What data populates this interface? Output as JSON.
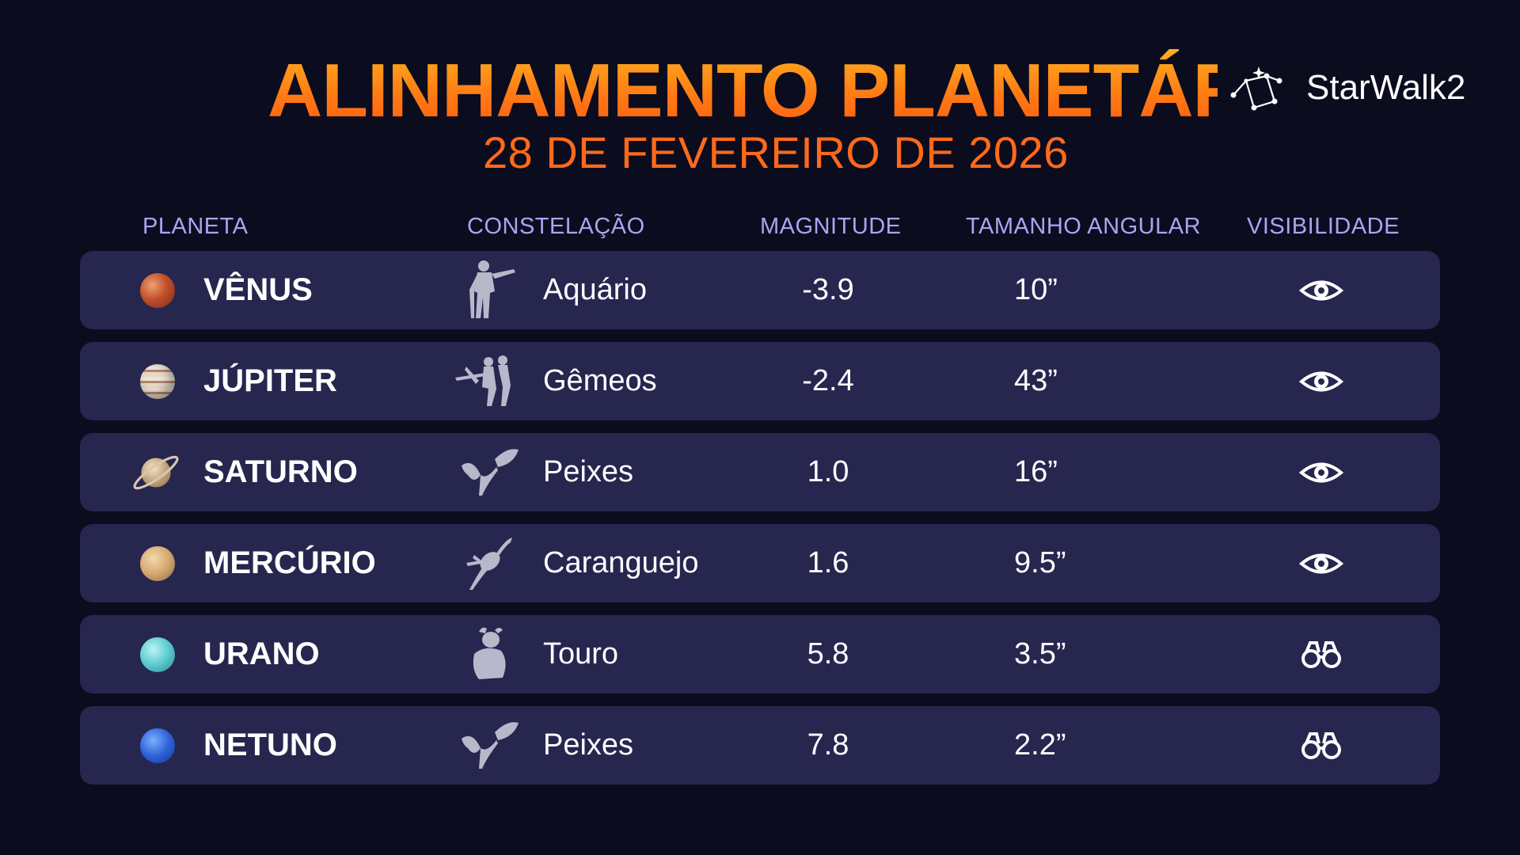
{
  "header": {
    "title": "ALINHAMENTO PLANETÁRIO",
    "subtitle": "28 DE FEVEREIRO DE 2026",
    "logo_text": "StarWalk2"
  },
  "table": {
    "columns": [
      "PLANETA",
      "CONSTELAÇÃO",
      "MAGNITUDE",
      "TAMANHO ANGULAR",
      "VISIBILIDADE"
    ],
    "rows": [
      {
        "planet": "VÊNUS",
        "planet_icon": "venus-icon",
        "constellation": "Aquário",
        "constellation_icon": "aquarius-icon",
        "magnitude": "-3.9",
        "angular_size": "10”",
        "visibility": "eye-icon"
      },
      {
        "planet": "JÚPITER",
        "planet_icon": "jupiter-icon",
        "constellation": "Gêmeos",
        "constellation_icon": "gemini-icon",
        "magnitude": "-2.4",
        "angular_size": "43”",
        "visibility": "eye-icon"
      },
      {
        "planet": "SATURNO",
        "planet_icon": "saturn-icon",
        "constellation": "Peixes",
        "constellation_icon": "pisces-icon",
        "magnitude": "1.0",
        "angular_size": "16”",
        "visibility": "eye-icon"
      },
      {
        "planet": "MERCÚRIO",
        "planet_icon": "mercury-icon",
        "constellation": "Caranguejo",
        "constellation_icon": "cancer-icon",
        "magnitude": "1.6",
        "angular_size": "9.5”",
        "visibility": "eye-icon"
      },
      {
        "planet": "URANO",
        "planet_icon": "uranus-icon",
        "constellation": "Touro",
        "constellation_icon": "taurus-icon",
        "magnitude": "5.8",
        "angular_size": "3.5”",
        "visibility": "binoculars-icon"
      },
      {
        "planet": "NETUNO",
        "planet_icon": "neptune-icon",
        "constellation": "Peixes",
        "constellation_icon": "pisces-icon",
        "magnitude": "7.8",
        "angular_size": "2.2”",
        "visibility": "binoculars-icon"
      }
    ]
  },
  "colors": {
    "background": "#0c0c1f",
    "row_background": "#26264f",
    "title_gradient_top": "#ffb020",
    "title_gradient_bottom": "#ff5a12",
    "subtitle": "#ff6a1a",
    "header_text": "#a8a6f2"
  }
}
